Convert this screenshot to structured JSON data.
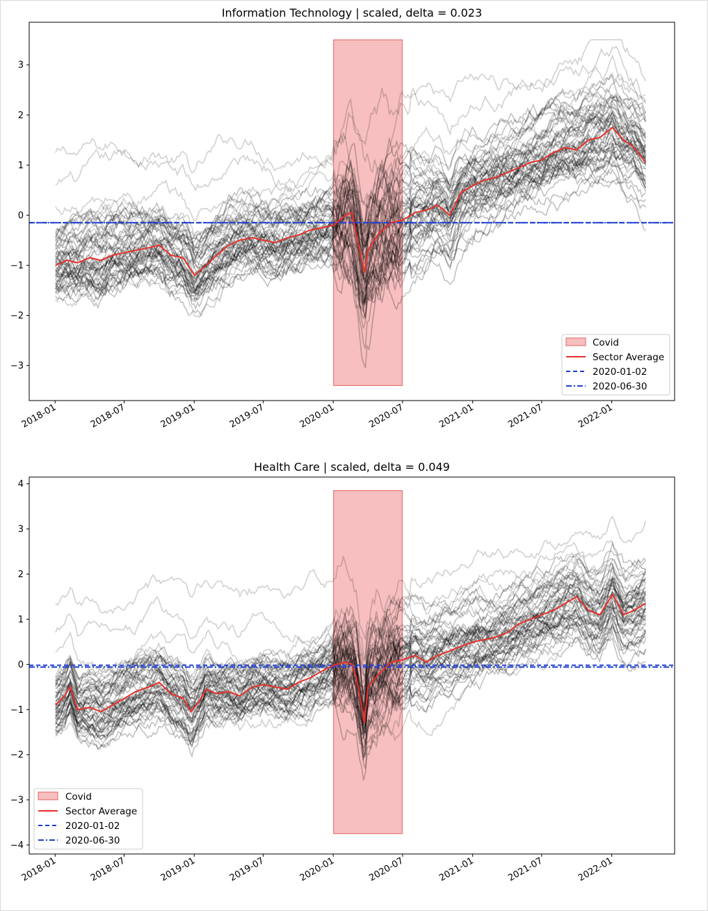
{
  "colors": {
    "covid_fill": "#f08080",
    "covid_edge": "#e06060",
    "average": "#e8302a",
    "stocks": "#000000",
    "ref_line": "#1f3fd0"
  },
  "legend_items": {
    "covid": "Covid",
    "average": "Sector Average",
    "dashed": "2020-01-02",
    "dashdot": "2020-06-30"
  },
  "chart_data": [
    {
      "type": "line",
      "title": "Information Technology | scaled, delta = 0.023",
      "xlabel": "",
      "ylabel": "",
      "x_ticks": [
        "2018-01",
        "2018-07",
        "2019-01",
        "2019-07",
        "2020-01",
        "2020-07",
        "2021-01",
        "2021-07",
        "2022-01"
      ],
      "y_ticks": [
        "−3",
        "−2",
        "−1",
        "0",
        "1",
        "2",
        "3"
      ],
      "y_tick_values": [
        -3,
        -2,
        -1,
        0,
        1,
        2,
        3
      ],
      "xlim": [
        "2017-10-25",
        "2022-06-15"
      ],
      "ylim": [
        -3.7,
        3.85
      ],
      "covid_span": {
        "start": "2020-01-02",
        "end": "2020-06-30",
        "ymin": -3.4,
        "ymax": 3.5
      },
      "reference_lines": [
        {
          "date": "2020-01-02",
          "style": "dashed",
          "y": -0.15
        },
        {
          "date": "2020-06-30",
          "style": "dashdot",
          "y": -0.15
        }
      ],
      "legend_position": "lower-right",
      "series": [
        {
          "name": "Sector Average",
          "x": [
            "2018-01-02",
            "2018-02-01",
            "2018-03-01",
            "2018-04-02",
            "2018-05-01",
            "2018-06-01",
            "2018-07-02",
            "2018-08-01",
            "2018-09-04",
            "2018-10-01",
            "2018-11-01",
            "2018-12-03",
            "2019-01-02",
            "2019-02-01",
            "2019-03-01",
            "2019-04-01",
            "2019-05-01",
            "2019-06-03",
            "2019-07-01",
            "2019-08-01",
            "2019-09-03",
            "2019-10-01",
            "2019-11-01",
            "2019-12-02",
            "2020-01-02",
            "2020-02-03",
            "2020-02-19",
            "2020-03-02",
            "2020-03-23",
            "2020-04-01",
            "2020-05-01",
            "2020-06-01",
            "2020-07-01",
            "2020-08-03",
            "2020-09-01",
            "2020-10-01",
            "2020-11-02",
            "2020-12-01",
            "2021-01-04",
            "2021-02-01",
            "2021-03-01",
            "2021-04-01",
            "2021-05-03",
            "2021-06-01",
            "2021-07-01",
            "2021-08-02",
            "2021-09-01",
            "2021-10-01",
            "2021-11-01",
            "2021-12-01",
            "2022-01-03",
            "2022-02-01",
            "2022-03-01",
            "2022-03-31"
          ],
          "values": [
            -1.0,
            -0.9,
            -0.95,
            -0.85,
            -0.9,
            -0.8,
            -0.75,
            -0.7,
            -0.65,
            -0.6,
            -0.8,
            -0.85,
            -1.2,
            -1.0,
            -0.8,
            -0.6,
            -0.5,
            -0.45,
            -0.5,
            -0.55,
            -0.45,
            -0.4,
            -0.3,
            -0.25,
            -0.2,
            0.0,
            0.05,
            -0.4,
            -1.15,
            -0.7,
            -0.35,
            -0.15,
            -0.1,
            0.05,
            0.1,
            0.2,
            0.0,
            0.45,
            0.6,
            0.7,
            0.75,
            0.85,
            0.95,
            1.05,
            1.1,
            1.25,
            1.35,
            1.3,
            1.5,
            1.55,
            1.75,
            1.5,
            1.35,
            1.05
          ]
        }
      ]
    },
    {
      "type": "line",
      "title": "Health Care | scaled, delta = 0.049",
      "xlabel": "",
      "ylabel": "",
      "x_ticks": [
        "2018-01",
        "2018-07",
        "2019-01",
        "2019-07",
        "2020-01",
        "2020-07",
        "2021-01",
        "2021-07",
        "2022-01"
      ],
      "y_ticks": [
        "−4",
        "−3",
        "−2",
        "−1",
        "0",
        "1",
        "2",
        "3",
        "4"
      ],
      "y_tick_values": [
        -4,
        -3,
        -2,
        -1,
        0,
        1,
        2,
        3,
        4
      ],
      "xlim": [
        "2017-10-25",
        "2022-06-15"
      ],
      "ylim": [
        -4.2,
        4.15
      ],
      "covid_span": {
        "start": "2020-01-02",
        "end": "2020-06-30",
        "ymin": -3.75,
        "ymax": 3.85
      },
      "reference_lines": [
        {
          "date": "2020-01-02",
          "style": "dashed",
          "y": -0.02
        },
        {
          "date": "2020-06-30",
          "style": "dashdot",
          "y": -0.06
        }
      ],
      "legend_position": "lower-left",
      "series": [
        {
          "name": "Sector Average",
          "x": [
            "2018-01-02",
            "2018-01-26",
            "2018-02-09",
            "2018-03-01",
            "2018-04-02",
            "2018-05-01",
            "2018-06-01",
            "2018-07-02",
            "2018-08-01",
            "2018-09-04",
            "2018-10-01",
            "2018-11-01",
            "2018-12-03",
            "2018-12-24",
            "2019-01-15",
            "2019-02-01",
            "2019-03-01",
            "2019-04-01",
            "2019-05-01",
            "2019-06-03",
            "2019-07-01",
            "2019-08-01",
            "2019-09-03",
            "2019-10-01",
            "2019-11-01",
            "2019-12-02",
            "2020-01-02",
            "2020-02-03",
            "2020-02-19",
            "2020-03-02",
            "2020-03-23",
            "2020-04-01",
            "2020-05-01",
            "2020-06-01",
            "2020-07-01",
            "2020-08-03",
            "2020-09-01",
            "2020-10-01",
            "2020-11-02",
            "2020-12-01",
            "2021-01-04",
            "2021-02-01",
            "2021-03-01",
            "2021-04-01",
            "2021-05-03",
            "2021-06-01",
            "2021-07-01",
            "2021-08-02",
            "2021-09-01",
            "2021-10-01",
            "2021-11-01",
            "2021-12-01",
            "2022-01-03",
            "2022-02-01",
            "2022-03-01",
            "2022-03-31"
          ],
          "values": [
            -0.9,
            -0.7,
            -0.5,
            -1.0,
            -0.95,
            -1.05,
            -0.9,
            -0.75,
            -0.6,
            -0.5,
            -0.4,
            -0.65,
            -0.75,
            -1.05,
            -0.8,
            -0.55,
            -0.65,
            -0.6,
            -0.7,
            -0.5,
            -0.45,
            -0.5,
            -0.55,
            -0.4,
            -0.3,
            -0.15,
            -0.02,
            0.05,
            0.0,
            -0.3,
            -1.3,
            -0.5,
            -0.2,
            0.05,
            0.1,
            0.2,
            0.05,
            0.2,
            0.3,
            0.4,
            0.5,
            0.55,
            0.6,
            0.7,
            0.9,
            1.0,
            1.1,
            1.2,
            1.35,
            1.5,
            1.2,
            1.1,
            1.55,
            1.1,
            1.2,
            1.35
          ]
        }
      ]
    }
  ]
}
